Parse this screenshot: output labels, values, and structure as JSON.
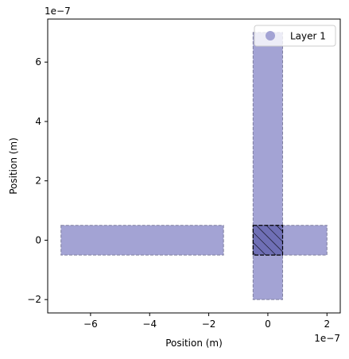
{
  "chart_data": {
    "type": "area",
    "xlabel": "Position (m)",
    "ylabel": "Position (m)",
    "x_offset_label": "1e−7",
    "y_offset_label": "1e−7",
    "x_scale_factor": 1e-07,
    "y_scale_factor": 1e-07,
    "xlim": [
      -7.45e-07,
      2.45e-07
    ],
    "ylim": [
      -2.45e-07,
      7.45e-07
    ],
    "xticks": [
      {
        "value": -6e-07,
        "label": "−6"
      },
      {
        "value": -4e-07,
        "label": "−4"
      },
      {
        "value": -2e-07,
        "label": "−2"
      },
      {
        "value": 0,
        "label": "0"
      },
      {
        "value": 2e-07,
        "label": "2"
      }
    ],
    "yticks": [
      {
        "value": -2e-07,
        "label": "−2"
      },
      {
        "value": 0,
        "label": "0"
      },
      {
        "value": 2e-07,
        "label": "2"
      },
      {
        "value": 4e-07,
        "label": "4"
      },
      {
        "value": 6e-07,
        "label": "6"
      }
    ],
    "legend": {
      "location": "upper right",
      "entries": [
        {
          "label": "Layer 1",
          "color": "#a3a3d4"
        }
      ]
    },
    "layer_color": "#a3a3d4",
    "overlap_color": "#6f6fb5",
    "shapes": [
      {
        "name": "left-arm",
        "layer": "Layer 1",
        "x": [
          -7e-07,
          -1.5e-07
        ],
        "y": [
          -5e-08,
          5e-08
        ]
      },
      {
        "name": "vertical-arm",
        "layer": "Layer 1",
        "x": [
          -5e-08,
          5e-08
        ],
        "y": [
          -2e-07,
          7e-07
        ]
      },
      {
        "name": "right-arm",
        "layer": "Layer 1",
        "x": [
          -5e-08,
          2e-07
        ],
        "y": [
          -5e-08,
          5e-08
        ]
      }
    ],
    "overlap_region": {
      "x": [
        -5e-08,
        5e-08
      ],
      "y": [
        -5e-08,
        5e-08
      ],
      "hatched": true
    }
  }
}
